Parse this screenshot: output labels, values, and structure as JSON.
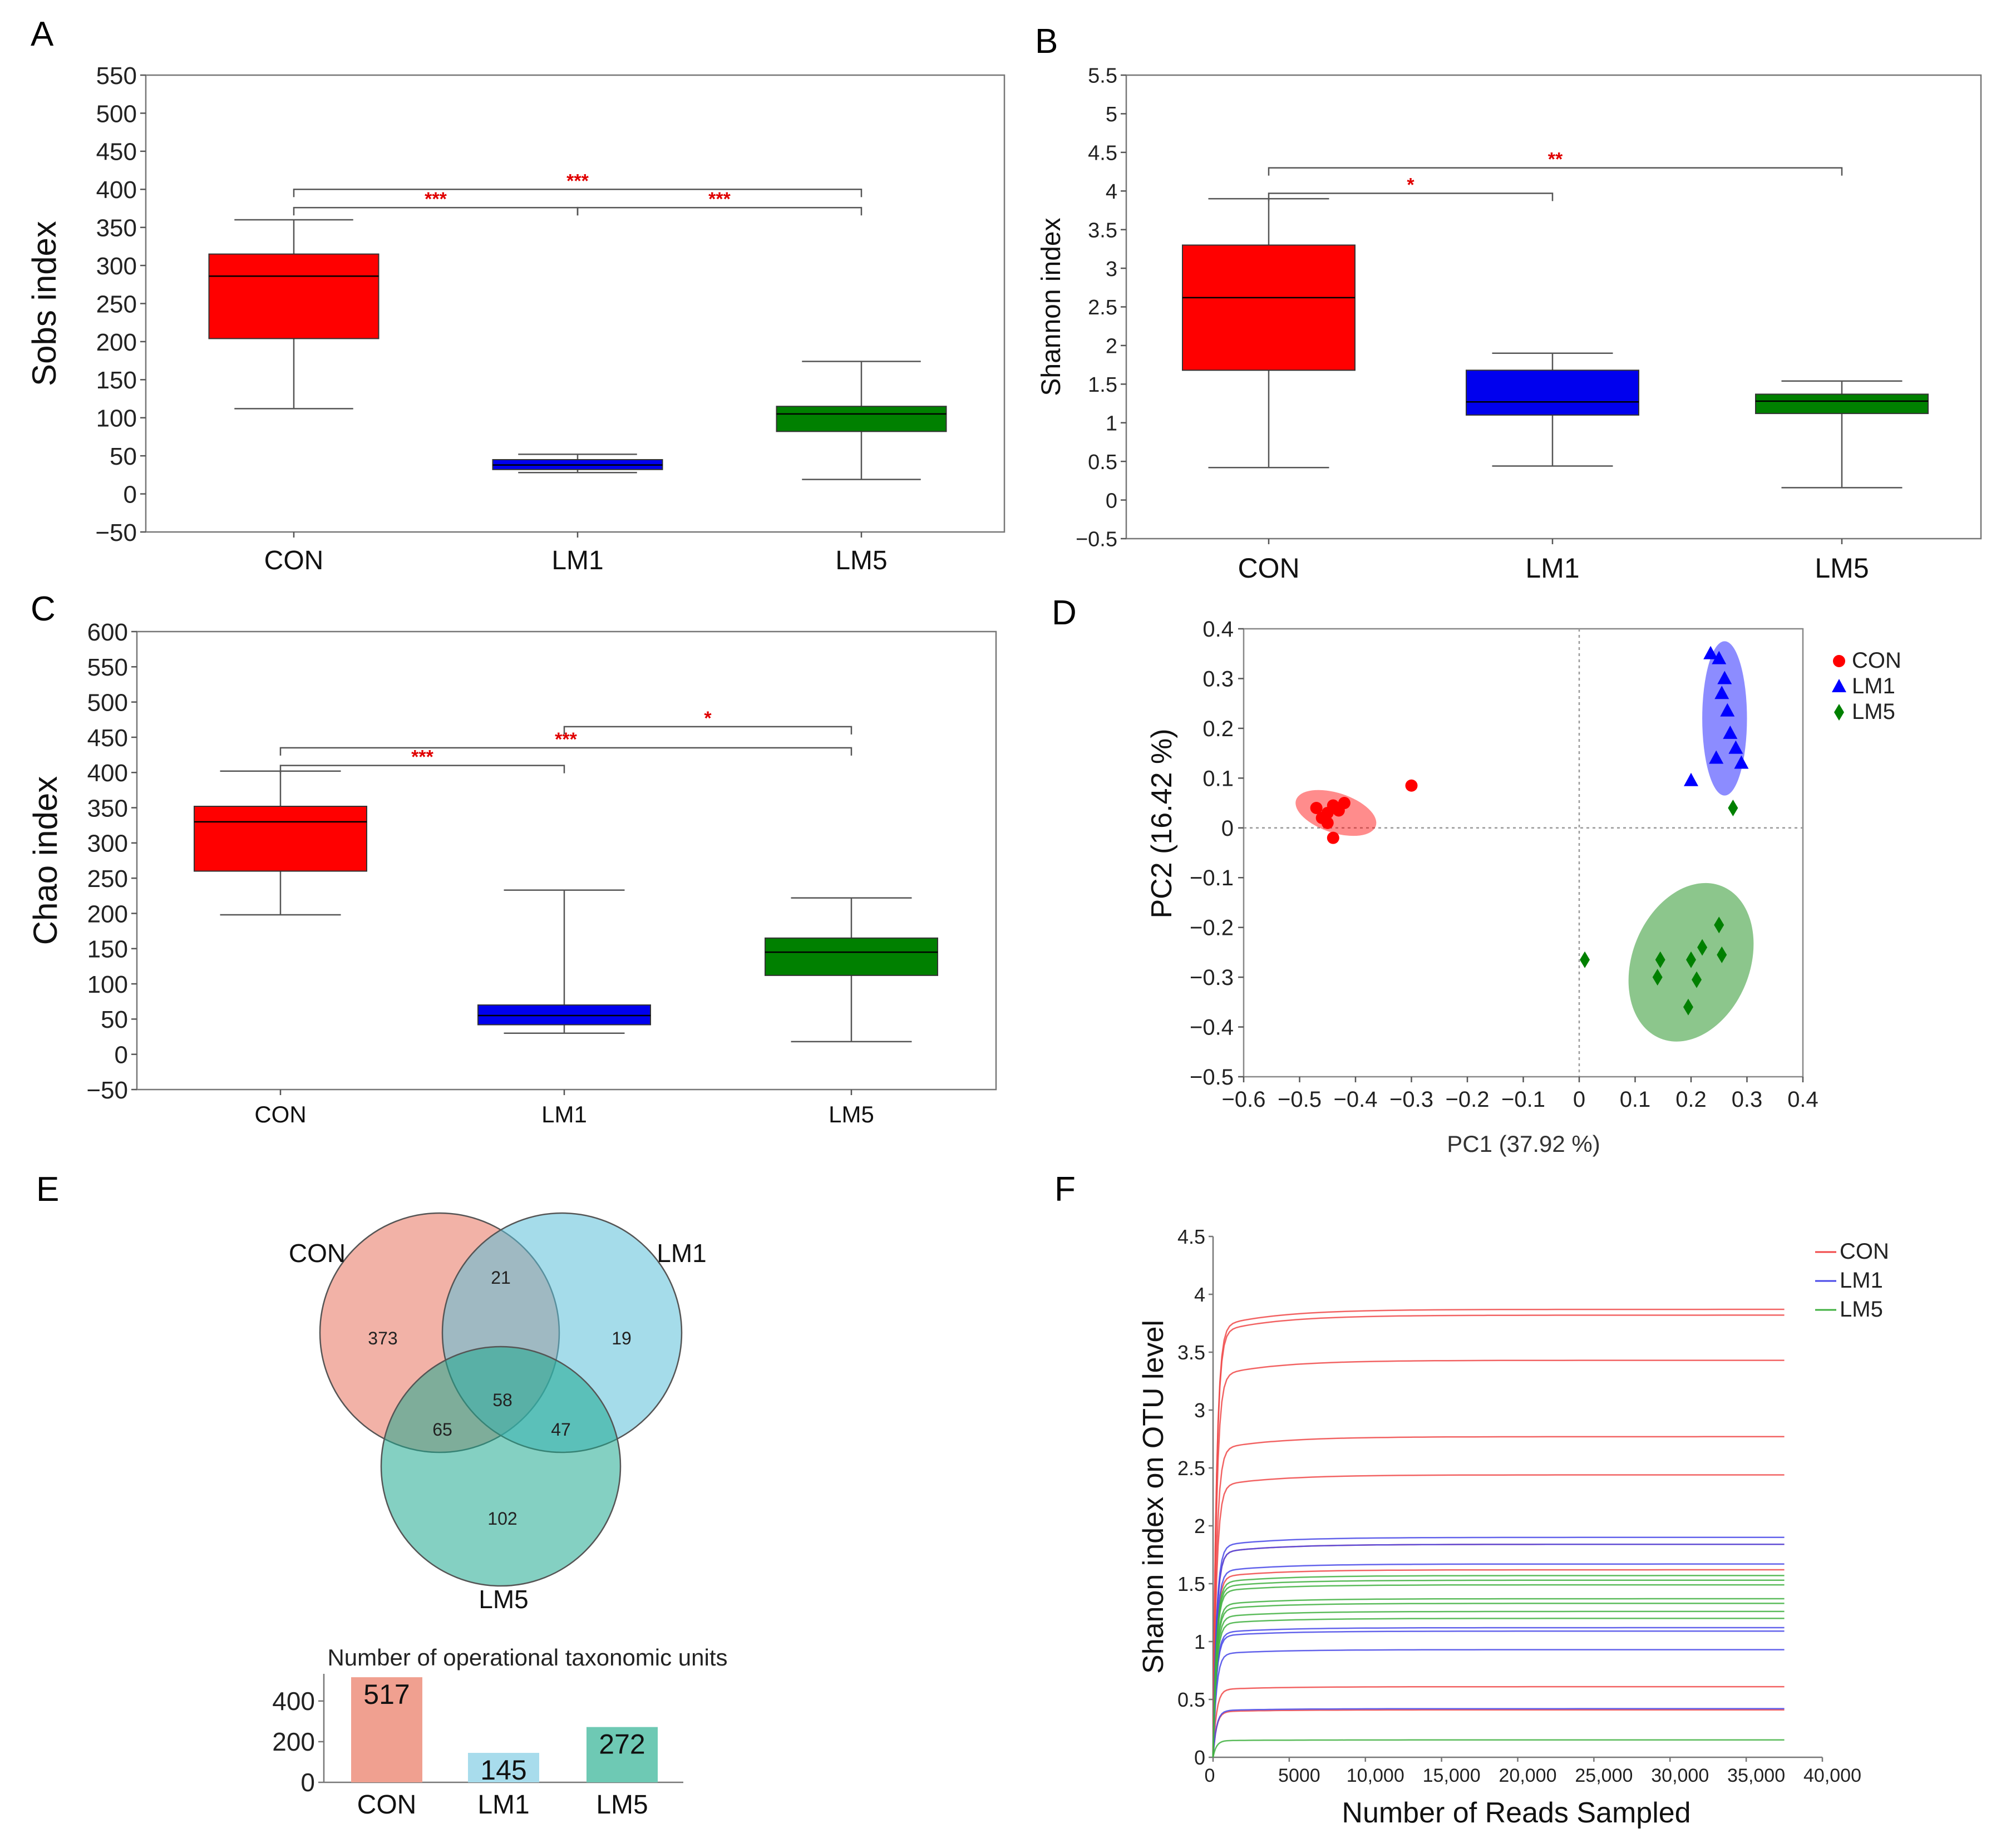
{
  "chart_data": [
    {
      "panel": "A",
      "type": "boxplot",
      "ylabel": "Sobs index",
      "ylim": [
        -50,
        550
      ],
      "yticks": [
        -50,
        0,
        50,
        100,
        150,
        200,
        250,
        300,
        350,
        400,
        450,
        500,
        550
      ],
      "categories": [
        "CON",
        "LM1",
        "LM5"
      ],
      "colors": [
        "#ff0000",
        "#0000ee",
        "#008000"
      ],
      "boxes": [
        {
          "group": "CON",
          "min": 112,
          "q1": 204,
          "median": 286,
          "q3": 315,
          "max": 360
        },
        {
          "group": "LM1",
          "min": 28,
          "q1": 32,
          "median": 38,
          "q3": 45,
          "max": 52
        },
        {
          "group": "LM5",
          "min": 19,
          "q1": 82,
          "median": 105,
          "q3": 115,
          "max": 174
        }
      ],
      "significance": [
        {
          "from": 0,
          "to": 1,
          "label": "***",
          "level": 376
        },
        {
          "from": 1,
          "to": 2,
          "label": "***",
          "level": 376
        },
        {
          "from": 0,
          "to": 2,
          "label": "***",
          "level": 400
        }
      ]
    },
    {
      "panel": "B",
      "type": "boxplot",
      "ylabel": "Shannon index",
      "ylim": [
        -0.5,
        5.5
      ],
      "yticks": [
        -0.5,
        0,
        0.5,
        1,
        1.5,
        2,
        2.5,
        3,
        3.5,
        4,
        4.5,
        5,
        5.5
      ],
      "categories": [
        "CON",
        "LM1",
        "LM5"
      ],
      "colors": [
        "#ff0000",
        "#0000ee",
        "#008000"
      ],
      "boxes": [
        {
          "group": "CON",
          "min": 0.42,
          "q1": 1.68,
          "median": 2.62,
          "q3": 3.3,
          "max": 3.9
        },
        {
          "group": "LM1",
          "min": 0.44,
          "q1": 1.1,
          "median": 1.27,
          "q3": 1.68,
          "max": 1.9
        },
        {
          "group": "LM5",
          "min": 0.16,
          "q1": 1.12,
          "median": 1.28,
          "q3": 1.37,
          "max": 1.54
        }
      ],
      "significance": [
        {
          "from": 0,
          "to": 1,
          "label": "*",
          "level": 3.97
        },
        {
          "from": 0,
          "to": 2,
          "label": "**",
          "level": 4.3
        }
      ]
    },
    {
      "panel": "C",
      "type": "boxplot",
      "ylabel": "Chao index",
      "ylim": [
        -50,
        600
      ],
      "yticks": [
        -50,
        0,
        50,
        100,
        150,
        200,
        250,
        300,
        350,
        400,
        450,
        500,
        550,
        600
      ],
      "categories": [
        "CON",
        "LM1",
        "LM5"
      ],
      "colors": [
        "#ff0000",
        "#0000ee",
        "#008000"
      ],
      "boxes": [
        {
          "group": "CON",
          "min": 198,
          "q1": 260,
          "median": 330,
          "q3": 352,
          "max": 402
        },
        {
          "group": "LM1",
          "min": 30,
          "q1": 42,
          "median": 55,
          "q3": 70,
          "max": 233
        },
        {
          "group": "LM5",
          "min": 18,
          "q1": 112,
          "median": 145,
          "q3": 165,
          "max": 222
        }
      ],
      "significance": [
        {
          "from": 0,
          "to": 1,
          "label": "***",
          "level": 410
        },
        {
          "from": 0,
          "to": 2,
          "label": "***",
          "level": 435
        },
        {
          "from": 1,
          "to": 2,
          "label": "*",
          "level": 465
        }
      ]
    },
    {
      "panel": "D",
      "type": "scatter",
      "xlabel": "PC1 (37.92 %)",
      "ylabel": "PC2 (16.42 %)",
      "xlim": [
        -0.6,
        0.4
      ],
      "ylim": [
        -0.5,
        0.4
      ],
      "xticks": [
        -0.6,
        -0.5,
        -0.4,
        -0.3,
        -0.2,
        -0.1,
        0,
        0.1,
        0.2,
        0.3,
        0.4
      ],
      "yticks": [
        -0.5,
        -0.4,
        -0.3,
        -0.2,
        -0.1,
        0,
        0.1,
        0.2,
        0.3,
        0.4
      ],
      "xtick_labels": [
        "−0.6",
        "−0.5",
        "−0.4",
        "−0.3",
        "−0.2",
        "−0.1",
        "0",
        "0.1",
        "0.2",
        "0.3",
        "0.4"
      ],
      "ytick_labels": [
        "−0.5",
        "−0.4",
        "−0.3",
        "−0.2",
        "−0.1",
        "0",
        "0.1",
        "0.2",
        "0.3",
        "0.4"
      ],
      "legend": [
        "CON",
        "LM1",
        "LM5"
      ],
      "series": [
        {
          "name": "CON",
          "color": "#ff0000",
          "marker": "circle",
          "x": [
            -0.47,
            -0.46,
            -0.45,
            -0.44,
            -0.43,
            -0.42,
            -0.44,
            -0.45,
            -0.3
          ],
          "y": [
            0.04,
            0.02,
            0.03,
            0.045,
            0.035,
            0.05,
            -0.02,
            0.01,
            0.085
          ],
          "ellipse": {
            "cx": -0.435,
            "cy": 0.03,
            "rx": 0.075,
            "ry": 0.04,
            "angle": 18
          }
        },
        {
          "name": "LM1",
          "color": "#0000ff",
          "marker": "triangle",
          "x": [
            0.235,
            0.25,
            0.26,
            0.255,
            0.265,
            0.27,
            0.28,
            0.245,
            0.29,
            0.2
          ],
          "y": [
            0.35,
            0.34,
            0.3,
            0.27,
            0.235,
            0.19,
            0.16,
            0.14,
            0.13,
            0.095
          ],
          "ellipse": {
            "cx": 0.26,
            "cy": 0.22,
            "rx": 0.04,
            "ry": 0.155,
            "angle": 0
          }
        },
        {
          "name": "LM5",
          "color": "#008000",
          "marker": "diamond",
          "x": [
            0.275,
            0.01,
            0.145,
            0.14,
            0.2,
            0.22,
            0.25,
            0.255,
            0.21,
            0.195
          ],
          "y": [
            0.04,
            -0.265,
            -0.265,
            -0.3,
            -0.265,
            -0.24,
            -0.195,
            -0.255,
            -0.305,
            -0.36
          ],
          "ellipse": {
            "cx": 0.2,
            "cy": -0.27,
            "rx": 0.105,
            "ry": 0.165,
            "angle": 22
          }
        }
      ]
    },
    {
      "panel": "E",
      "type": "venn",
      "sets": [
        {
          "name": "CON",
          "color": "#e8735f"
        },
        {
          "name": "LM1",
          "color": "#5bbfd9"
        },
        {
          "name": "LM5",
          "color": "#1fa98f"
        }
      ],
      "regions": {
        "CON_only": 373,
        "LM1_only": 19,
        "LM5_only": 102,
        "CON_LM1": 21,
        "CON_LM5": 65,
        "LM1_LM5": 47,
        "all": 58
      },
      "bar": {
        "title": "Number of operational taxonomic units",
        "categories": [
          "CON",
          "LM1",
          "LM5"
        ],
        "values": [
          517,
          145,
          272
        ],
        "colors": [
          "#f0a090",
          "#a8dcec",
          "#6ec9b4"
        ],
        "yticks": [
          0,
          200,
          400
        ],
        "ylim": [
          0,
          520
        ]
      }
    },
    {
      "panel": "F",
      "type": "line",
      "xlabel": "Number of Reads Sampled",
      "ylabel": "Shanon index on OTU level",
      "xlim": [
        0,
        40000
      ],
      "ylim": [
        0,
        4.5
      ],
      "xticks": [
        0,
        5000,
        10000,
        15000,
        20000,
        25000,
        30000,
        35000,
        40000
      ],
      "xtick_labels": [
        "0",
        "5000",
        "10,000",
        "15,000",
        "20,000",
        "25,000",
        "30,000",
        "35,000",
        "40,000"
      ],
      "yticks": [
        0,
        0.5,
        1,
        1.5,
        2,
        2.5,
        3,
        3.5,
        4,
        4.5
      ],
      "legend": [
        "CON",
        "LM1",
        "LM5"
      ],
      "x_end": 37500,
      "series": [
        {
          "name": "CON",
          "color": "#f04848",
          "plateaus": [
            3.87,
            3.82,
            3.43,
            2.77,
            2.44,
            1.84,
            1.62,
            0.61,
            0.41
          ]
        },
        {
          "name": "LM1",
          "color": "#4848e8",
          "plateaus": [
            1.9,
            1.84,
            1.67,
            1.12,
            1.09,
            0.93,
            0.42
          ]
        },
        {
          "name": "LM5",
          "color": "#40b040",
          "plateaus": [
            1.57,
            1.53,
            1.49,
            1.37,
            1.33,
            1.26,
            1.2,
            0.15
          ]
        }
      ]
    }
  ],
  "panel_letters": {
    "A": "A",
    "B": "B",
    "C": "C",
    "D": "D",
    "E": "E",
    "F": "F"
  }
}
